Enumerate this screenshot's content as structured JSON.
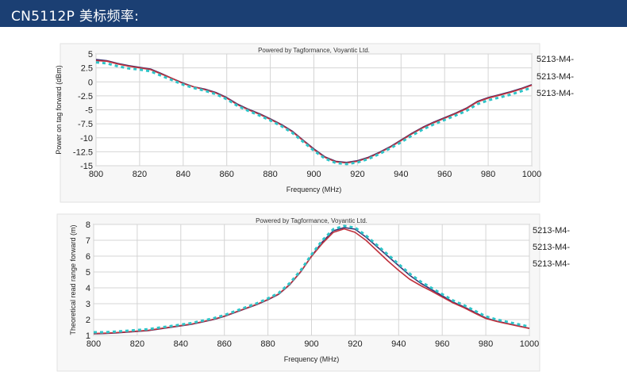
{
  "header": {
    "title": "CN5112P 美标频率:"
  },
  "chart_data": [
    {
      "type": "line",
      "title": "Powered by Tagformance, Voyantic Ltd.",
      "xlabel": "Frequency (MHz)",
      "ylabel": "Power on tag forward (dBm)",
      "xlim": [
        800,
        1000
      ],
      "ylim": [
        -15,
        5
      ],
      "x_ticks": [
        800,
        820,
        840,
        860,
        880,
        900,
        920,
        940,
        960,
        980,
        1000
      ],
      "y_ticks": [
        5,
        2.5,
        0,
        -2.5,
        -5,
        -7.5,
        -10,
        -12.5,
        -15
      ],
      "y_tick_labels": [
        "5",
        "2.5",
        "0",
        "-2.5",
        "-5",
        "-7.5",
        "-10",
        "-12.5",
        "-15"
      ],
      "grid": true,
      "legend": "right",
      "x": [
        800,
        805,
        810,
        815,
        820,
        825,
        830,
        835,
        840,
        845,
        850,
        855,
        860,
        865,
        870,
        875,
        880,
        885,
        890,
        895,
        900,
        905,
        910,
        915,
        920,
        925,
        930,
        935,
        940,
        945,
        950,
        955,
        960,
        965,
        970,
        975,
        980,
        985,
        990,
        995,
        1000
      ],
      "series": [
        {
          "name": "5213-M4-",
          "color": "#3d2f6f",
          "values": [
            4.0,
            3.8,
            3.3,
            2.9,
            2.6,
            2.3,
            1.5,
            0.6,
            -0.2,
            -0.9,
            -1.3,
            -1.9,
            -2.8,
            -4.0,
            -4.9,
            -5.7,
            -6.6,
            -7.6,
            -8.8,
            -10.4,
            -12.0,
            -13.4,
            -14.2,
            -14.4,
            -14.1,
            -13.5,
            -12.6,
            -11.6,
            -10.4,
            -9.2,
            -8.1,
            -7.2,
            -6.4,
            -5.6,
            -4.7,
            -3.5,
            -2.8,
            -2.3,
            -1.8,
            -1.2,
            -0.5
          ]
        },
        {
          "name": "5213-M4-",
          "color": "#c0313c",
          "values": [
            3.8,
            3.7,
            3.2,
            2.8,
            2.5,
            2.2,
            1.4,
            0.6,
            -0.3,
            -0.9,
            -1.4,
            -2.0,
            -2.9,
            -4.1,
            -5.0,
            -5.8,
            -6.7,
            -7.7,
            -8.9,
            -10.5,
            -12.1,
            -13.5,
            -14.3,
            -14.5,
            -14.2,
            -13.6,
            -12.7,
            -11.7,
            -10.5,
            -9.3,
            -8.2,
            -7.3,
            -6.5,
            -5.7,
            -4.8,
            -3.6,
            -2.9,
            -2.4,
            -1.9,
            -1.3,
            -0.6
          ]
        },
        {
          "name": "5213-M4-",
          "color": "#2ec4c8",
          "dashed": true,
          "values": [
            3.5,
            3.3,
            2.8,
            2.4,
            2.2,
            1.9,
            1.1,
            0.3,
            -0.5,
            -1.1,
            -1.6,
            -2.2,
            -3.1,
            -4.3,
            -5.2,
            -6.0,
            -6.9,
            -7.9,
            -9.1,
            -10.7,
            -12.3,
            -13.7,
            -14.5,
            -14.7,
            -14.4,
            -13.8,
            -12.9,
            -11.9,
            -10.8,
            -9.6,
            -8.5,
            -7.6,
            -6.8,
            -6.0,
            -5.2,
            -4.0,
            -3.3,
            -2.8,
            -2.3,
            -1.7,
            -1.0
          ]
        }
      ]
    },
    {
      "type": "line",
      "title": "Powered by Tagformance, Voyantic Ltd.",
      "xlabel": "Frequency (MHz)",
      "ylabel": "Theoretical read range forward (m)",
      "xlim": [
        800,
        1000
      ],
      "ylim": [
        1,
        8
      ],
      "x_ticks": [
        800,
        820,
        840,
        860,
        880,
        900,
        920,
        940,
        960,
        980,
        1000
      ],
      "y_ticks": [
        8,
        7,
        6,
        5,
        4,
        3,
        2,
        1
      ],
      "y_tick_labels": [
        "8",
        "7",
        "6",
        "5",
        "4",
        "3",
        "2",
        "1"
      ],
      "grid": true,
      "legend": "right",
      "x": [
        800,
        805,
        810,
        815,
        820,
        825,
        830,
        835,
        840,
        845,
        850,
        855,
        860,
        865,
        870,
        875,
        880,
        885,
        890,
        895,
        900,
        905,
        910,
        915,
        920,
        925,
        930,
        935,
        940,
        945,
        950,
        955,
        960,
        965,
        970,
        975,
        980,
        985,
        990,
        995,
        1000
      ],
      "series": [
        {
          "name": "5213-M4-",
          "color": "#3d2f6f",
          "values": [
            1.1,
            1.12,
            1.15,
            1.2,
            1.25,
            1.3,
            1.4,
            1.5,
            1.6,
            1.7,
            1.85,
            2.0,
            2.2,
            2.45,
            2.7,
            2.95,
            3.25,
            3.6,
            4.2,
            5.0,
            6.0,
            6.9,
            7.6,
            7.8,
            7.7,
            7.2,
            6.6,
            6.0,
            5.4,
            4.8,
            4.3,
            3.9,
            3.5,
            3.1,
            2.8,
            2.45,
            2.1,
            1.9,
            1.75,
            1.6,
            1.45
          ]
        },
        {
          "name": "5213-M4-",
          "color": "#c0313c",
          "values": [
            1.12,
            1.14,
            1.17,
            1.22,
            1.27,
            1.32,
            1.42,
            1.52,
            1.62,
            1.72,
            1.87,
            2.02,
            2.22,
            2.47,
            2.72,
            2.97,
            3.27,
            3.62,
            4.22,
            5.02,
            5.98,
            6.8,
            7.5,
            7.72,
            7.5,
            7.0,
            6.35,
            5.7,
            5.1,
            4.55,
            4.15,
            3.8,
            3.42,
            3.05,
            2.75,
            2.4,
            2.07,
            1.88,
            1.73,
            1.58,
            1.44
          ]
        },
        {
          "name": "5213-M4-",
          "color": "#2ec4c8",
          "dashed": true,
          "values": [
            1.2,
            1.2,
            1.24,
            1.29,
            1.34,
            1.39,
            1.49,
            1.58,
            1.68,
            1.78,
            1.93,
            2.08,
            2.28,
            2.53,
            2.78,
            3.03,
            3.33,
            3.68,
            4.3,
            5.1,
            6.1,
            7.0,
            7.7,
            7.9,
            7.8,
            7.3,
            6.7,
            6.1,
            5.5,
            4.9,
            4.4,
            4.0,
            3.6,
            3.2,
            2.9,
            2.55,
            2.2,
            2.0,
            1.85,
            1.7,
            1.55
          ]
        }
      ]
    }
  ]
}
